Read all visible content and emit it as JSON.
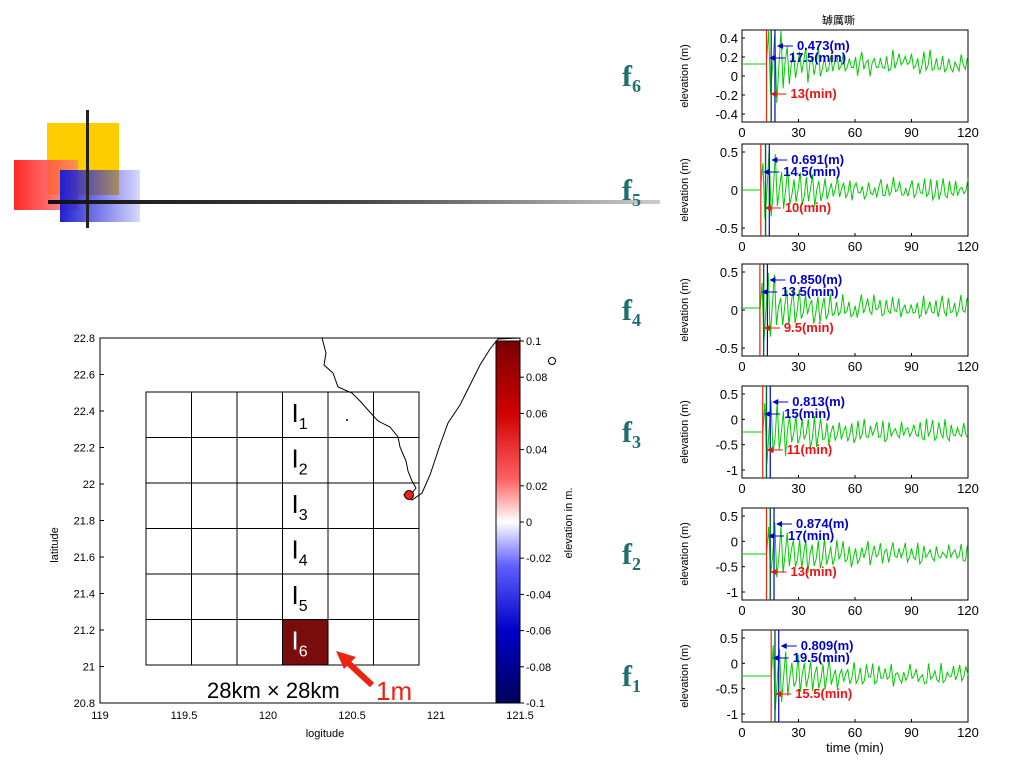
{
  "colors": {
    "accent_yellow": "#ffcc00",
    "accent_red": "#ff3333",
    "accent_blue": "#2b2bd0",
    "teal": "#1f6f6f",
    "grid_cell": "#7b0c0c",
    "curve": "#00cc00",
    "text_red": "#ee1111",
    "text_blue": "#0000cc"
  },
  "map": {
    "ylabel": "latitude",
    "xlabel": "logitude",
    "colorbar_label": "elevation in m.",
    "yticks": [
      "22.8",
      "22.6",
      "22.4",
      "22.2",
      "22",
      "21.8",
      "21.6",
      "21.4",
      "21.2",
      "21",
      "20.8"
    ],
    "xticks": [
      "119",
      "119.5",
      "120",
      "120.5",
      "121",
      "121.5"
    ],
    "cbar_ticks": [
      "0.1",
      "0.08",
      "0.06",
      "0.04",
      "0.02",
      "0",
      "-0.02",
      "-0.04",
      "-0.06",
      "-0.08",
      "-0.1"
    ],
    "cells": [
      {
        "main": "I",
        "sub": "6"
      },
      {
        "main": "I",
        "sub": "5"
      },
      {
        "main": "I",
        "sub": "4"
      },
      {
        "main": "I",
        "sub": "3"
      },
      {
        "main": "I",
        "sub": "2"
      },
      {
        "main": "I",
        "sub": "1"
      }
    ],
    "scale_text": "28km × 28km",
    "amp_label": "1m"
  },
  "panels_title": "罅厲嘶",
  "panels_xlabel": "time (min)",
  "panels_ylabel": "elevation (m)",
  "panel_xticks": [
    "0",
    "30",
    "60",
    "90",
    "120"
  ],
  "panels": [
    {
      "label": "f",
      "sub": "6",
      "amp": "0.473(m)",
      "peak": "17.5(min)",
      "arrival": "13(min)",
      "yticks": [
        "0.4",
        "0.2",
        "0",
        "-0.2",
        "-0.4"
      ]
    },
    {
      "label": "f",
      "sub": "5",
      "amp": "0.691(m)",
      "peak": "14.5(min)",
      "arrival": "10(min)",
      "yticks": [
        "0.5",
        "0",
        "-0.5"
      ]
    },
    {
      "label": "f",
      "sub": "4",
      "amp": "0.850(m)",
      "peak": "13.5(min)",
      "arrival": "9.5(min)",
      "yticks": [
        "0.5",
        "0",
        "-0.5"
      ]
    },
    {
      "label": "f",
      "sub": "3",
      "amp": "0.813(m)",
      "peak": "15(min)",
      "arrival": "11(min)",
      "yticks": [
        "0.5",
        "0",
        "-0.5",
        "-1"
      ]
    },
    {
      "label": "f",
      "sub": "2",
      "amp": "0.874(m)",
      "peak": "17(min)",
      "arrival": "13(min)",
      "yticks": [
        "0.5",
        "0",
        "-0.5",
        "-1"
      ]
    },
    {
      "label": "f",
      "sub": "1",
      "amp": "0.809(m)",
      "peak": "19.5(min)",
      "arrival": "15.5(min)",
      "yticks": [
        "0.5",
        "0",
        "-0.5",
        "-1"
      ]
    }
  ]
}
